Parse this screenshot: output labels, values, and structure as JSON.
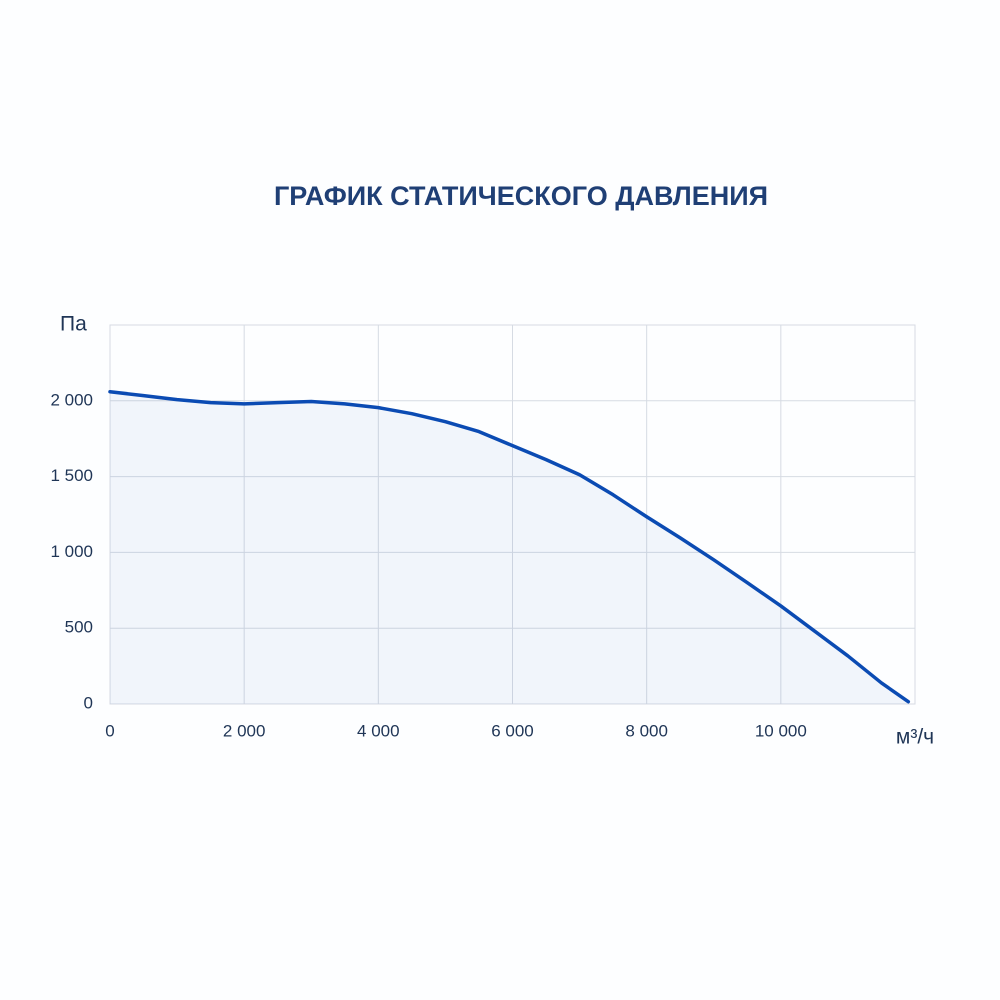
{
  "chart_data": {
    "type": "area",
    "title": "ГРАФИК СТАТИЧЕСКОГО ДАВЛЕНИЯ",
    "x_label": "м³/ч",
    "y_label": "Па",
    "x": [
      0,
      500,
      1000,
      1500,
      2000,
      2500,
      3000,
      3500,
      4000,
      4500,
      5000,
      5500,
      6000,
      6500,
      7000,
      7500,
      8000,
      8500,
      9000,
      9500,
      10000,
      10500,
      11000,
      11500,
      11900
    ],
    "values": [
      2060,
      2034,
      2008,
      1988,
      1980,
      1988,
      1995,
      1980,
      1955,
      1915,
      1862,
      1797,
      1704,
      1612,
      1512,
      1380,
      1235,
      1096,
      951,
      800,
      647,
      482,
      317,
      139,
      15
    ],
    "color": "#0b4bb3",
    "xlim": [
      0,
      12000
    ],
    "xticks": [
      0,
      {
        "value": 2000,
        "label": "2 000"
      },
      {
        "value": 4000,
        "label": "4 000"
      },
      {
        "value": 6000,
        "label": "6 000"
      },
      {
        "value": 8000,
        "label": "8 000"
      },
      {
        "value": 10000,
        "label": "10 000"
      }
    ],
    "ylim": [
      0,
      2500
    ],
    "yticks": [
      0,
      500,
      {
        "value": 1000,
        "label": "1 000"
      },
      {
        "value": 1500,
        "label": "1 500"
      },
      {
        "value": 2000,
        "label": "2 000"
      }
    ],
    "grid": true
  }
}
